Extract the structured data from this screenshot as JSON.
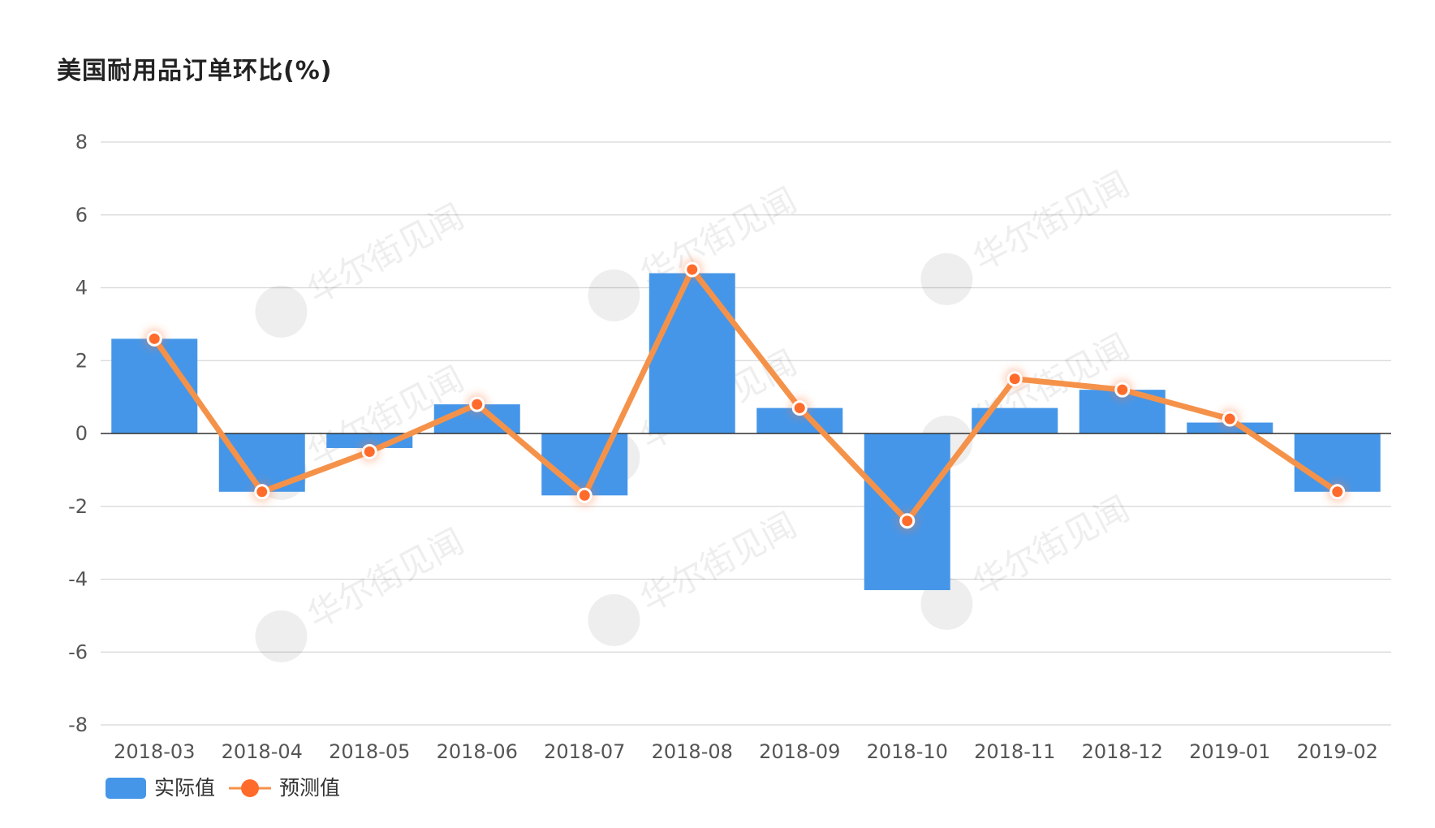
{
  "chart_data": {
    "type": "bar",
    "title": "美国耐用品订单环比(%)",
    "categories": [
      "2018-03",
      "2018-04",
      "2018-05",
      "2018-06",
      "2018-07",
      "2018-08",
      "2018-09",
      "2018-10",
      "2018-11",
      "2018-12",
      "2019-01",
      "2019-02"
    ],
    "series": [
      {
        "name": "实际值",
        "type": "bar",
        "color": "#4596E8",
        "values": [
          2.6,
          -1.6,
          -0.4,
          0.8,
          -1.7,
          4.4,
          0.7,
          -4.3,
          0.7,
          1.2,
          0.3,
          -1.6
        ]
      },
      {
        "name": "预测值",
        "type": "line",
        "color": "#F5924A",
        "marker_color": "#FF6B2B",
        "values": [
          2.6,
          -1.6,
          -0.5,
          0.8,
          -1.7,
          4.5,
          0.7,
          -2.4,
          1.5,
          1.2,
          0.4,
          -1.6
        ]
      }
    ],
    "ylim": [
      -8,
      8
    ],
    "yticks": [
      8,
      6,
      4,
      2,
      0,
      -2,
      -4,
      -6,
      -8
    ],
    "grid": true,
    "legend": "bottom-left",
    "xlabel": "",
    "ylabel": ""
  },
  "watermark": "华尔街见闻"
}
